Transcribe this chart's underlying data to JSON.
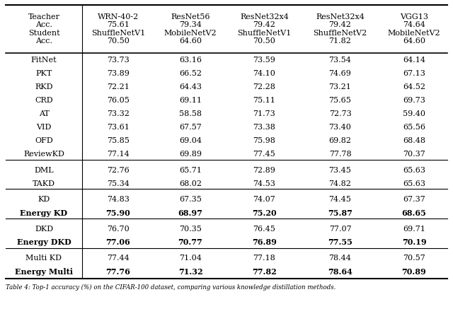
{
  "header_col0_lines": [
    "Teacher",
    "Acc.",
    "Student",
    "Acc."
  ],
  "header_cols": [
    [
      "WRN-40-2",
      "75.61",
      "ShuffleNetV1",
      "70.50"
    ],
    [
      "ResNet56",
      "79.34",
      "MobileNetV2",
      "64.60"
    ],
    [
      "ResNet32x4",
      "79.42",
      "ShuffleNetV1",
      "70.50"
    ],
    [
      "ResNet32x4",
      "79.42",
      "ShuffleNetV2",
      "71.82"
    ],
    [
      "VGG13",
      "74.64",
      "MobileNetV2",
      "64.60"
    ]
  ],
  "data": [
    [
      "FitNet",
      73.73,
      63.16,
      73.59,
      73.54,
      64.14
    ],
    [
      "PKT",
      73.89,
      66.52,
      74.1,
      74.69,
      67.13
    ],
    [
      "RKD",
      72.21,
      64.43,
      72.28,
      73.21,
      64.52
    ],
    [
      "CRD",
      76.05,
      69.11,
      75.11,
      75.65,
      69.73
    ],
    [
      "AT",
      73.32,
      58.58,
      71.73,
      72.73,
      59.4
    ],
    [
      "VID",
      73.61,
      67.57,
      73.38,
      73.4,
      65.56
    ],
    [
      "OFD",
      75.85,
      69.04,
      75.98,
      69.82,
      68.48
    ],
    [
      "ReviewKD",
      77.14,
      69.89,
      77.45,
      77.78,
      70.37
    ],
    [
      "DML",
      72.76,
      65.71,
      72.89,
      73.45,
      65.63
    ],
    [
      "TAKD",
      75.34,
      68.02,
      74.53,
      74.82,
      65.63
    ],
    [
      "KD",
      74.83,
      67.35,
      74.07,
      74.45,
      67.37
    ],
    [
      "Energy KD",
      75.9,
      68.97,
      75.2,
      75.87,
      68.65
    ],
    [
      "DKD",
      76.7,
      70.35,
      76.45,
      77.07,
      69.71
    ],
    [
      "Energy DKD",
      77.06,
      70.77,
      76.89,
      77.55,
      70.19
    ],
    [
      "Multi KD",
      77.44,
      71.04,
      77.18,
      78.44,
      70.57
    ],
    [
      "Energy Multi",
      77.76,
      71.32,
      77.82,
      78.64,
      70.89
    ]
  ],
  "bold_rows": [
    11,
    13,
    15
  ],
  "section_separators_after": [
    7,
    9,
    11,
    13
  ],
  "caption": "Table 4: Top-1 accuracy (%) on the CIFAR-100 dataset, comparing various knowledge distillation methods.",
  "background_color": "#ffffff",
  "font_size": 8.0
}
